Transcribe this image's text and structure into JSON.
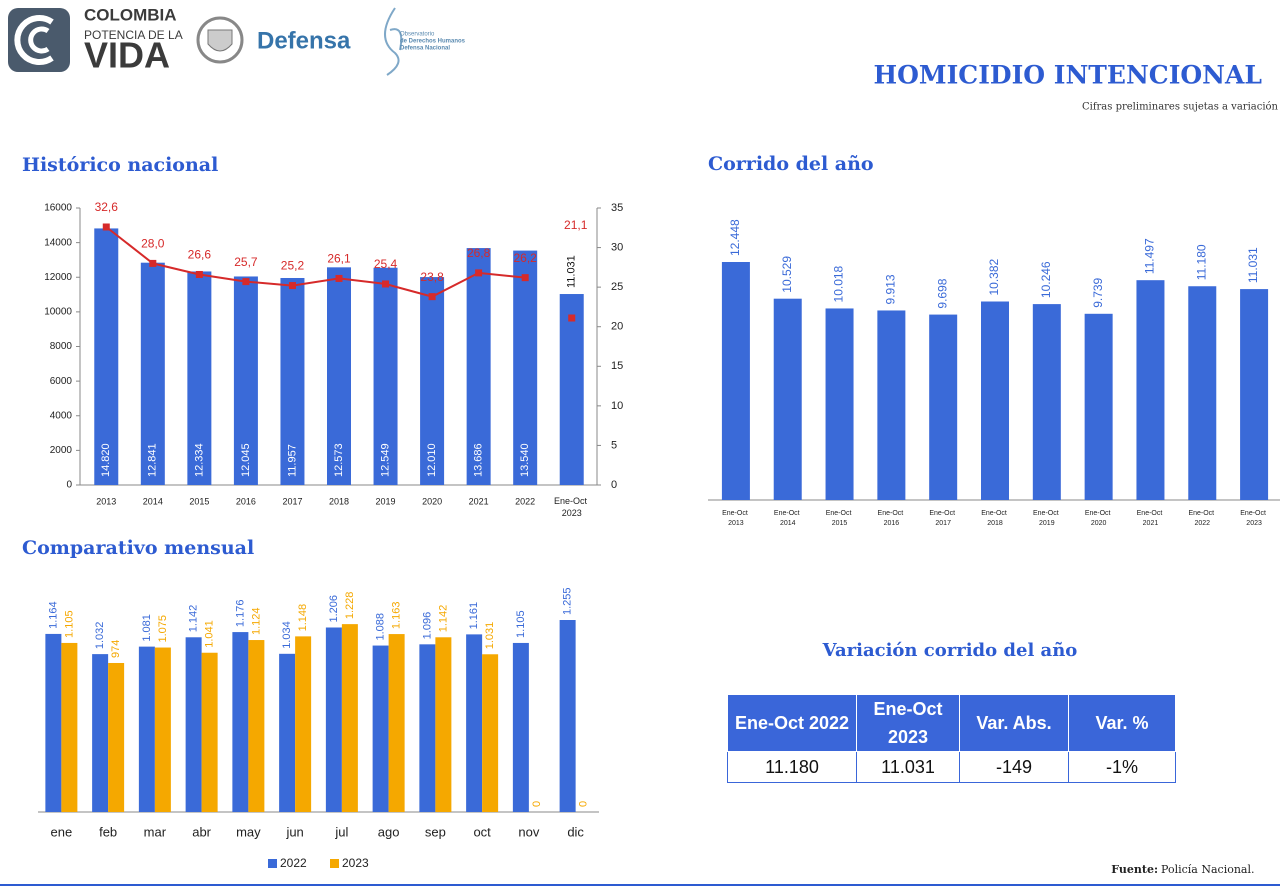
{
  "header": {
    "logo_line1": "COLOMBIA",
    "logo_line2": "POTENCIA DE LA",
    "logo_line3": "VIDA",
    "ministry": "Defensa",
    "observatory": [
      "Observatorio",
      "de Derechos Humanos",
      "Defensa Nacional"
    ],
    "title": "HOMICIDIO INTENCIONAL",
    "subtitle": "Cifras preliminares sujetas a variación"
  },
  "chart_data": [
    {
      "type": "combo",
      "title": "Histórico nacional",
      "categories": [
        "2013",
        "2014",
        "2015",
        "2016",
        "2017",
        "2018",
        "2019",
        "2020",
        "2021",
        "2022",
        "Ene-Oct 2023"
      ],
      "series": [
        {
          "type": "bar",
          "color": "#3a6ad8",
          "values": [
            14820,
            12841,
            12334,
            12045,
            11957,
            12573,
            12549,
            12010,
            13686,
            13540,
            11031
          ],
          "value_labels": [
            "14.820",
            "12.841",
            "12.334",
            "12.045",
            "11.957",
            "12.573",
            "12.549",
            "12.010",
            "13.686",
            "13.540",
            "11.031"
          ]
        },
        {
          "type": "line",
          "axis": "y2",
          "color": "#d62a2a",
          "values": [
            32.6,
            28.0,
            26.6,
            25.7,
            25.2,
            26.1,
            25.4,
            23.8,
            26.8,
            26.2,
            null
          ],
          "value_labels": [
            "32,6",
            "28,0",
            "26,6",
            "25,7",
            "25,2",
            "26,1",
            "25,4",
            "23,8",
            "26,8",
            "26,2",
            null
          ]
        },
        {
          "type": "marker",
          "axis": "y2",
          "color": "#d62a2a",
          "values": [
            null,
            null,
            null,
            null,
            null,
            null,
            null,
            null,
            null,
            null,
            21.1
          ],
          "value_labels": [
            null,
            null,
            null,
            null,
            null,
            null,
            null,
            null,
            null,
            null,
            "21,1"
          ]
        }
      ],
      "ylim": [
        0,
        16000
      ],
      "yticks": [
        0,
        2000,
        4000,
        6000,
        8000,
        10000,
        12000,
        14000,
        16000
      ],
      "y2lim": [
        0,
        35
      ],
      "y2ticks": [
        0,
        5,
        10,
        15,
        20,
        25,
        30,
        35
      ]
    },
    {
      "type": "bar",
      "title": "Corrido del año",
      "categories": [
        "Ene-Oct 2013",
        "Ene-Oct 2014",
        "Ene-Oct 2015",
        "Ene-Oct 2016",
        "Ene-Oct 2017",
        "Ene-Oct 2018",
        "Ene-Oct 2019",
        "Ene-Oct 2020",
        "Ene-Oct 2021",
        "Ene-Oct 2022",
        "Ene-Oct 2023"
      ],
      "values": [
        12448,
        10529,
        10018,
        9913,
        9698,
        10382,
        10246,
        9739,
        11497,
        11180,
        11031
      ],
      "value_labels": [
        "12.448",
        "10.529",
        "10.018",
        "9.913",
        "9.698",
        "10.382",
        "10.246",
        "9.739",
        "11.497",
        "11.180",
        "11.031"
      ],
      "color": "#3a6ad8"
    },
    {
      "type": "grouped_bar",
      "title": "Comparativo mensual",
      "categories": [
        "ene",
        "feb",
        "mar",
        "abr",
        "may",
        "jun",
        "jul",
        "ago",
        "sep",
        "oct",
        "nov",
        "dic"
      ],
      "series": [
        {
          "name": "2022",
          "color": "#3a6ad8",
          "values": [
            1164,
            1032,
            1081,
            1142,
            1176,
            1034,
            1206,
            1088,
            1096,
            1161,
            1105,
            1255
          ],
          "value_labels": [
            "1.164",
            "1.032",
            "1.081",
            "1.142",
            "1.176",
            "1.034",
            "1.206",
            "1.088",
            "1.096",
            "1.161",
            "1.105",
            "1.255"
          ]
        },
        {
          "name": "2023",
          "color": "#f5a800",
          "values": [
            1105,
            974,
            1075,
            1041,
            1124,
            1148,
            1228,
            1163,
            1142,
            1031,
            0,
            0
          ],
          "value_labels": [
            "1.105",
            "974",
            "1.075",
            "1.041",
            "1.124",
            "1.148",
            "1.228",
            "1.163",
            "1.142",
            "1.031",
            "0",
            "0"
          ]
        }
      ],
      "legend": "bottom"
    }
  ],
  "table": {
    "title": "Variación corrido del año",
    "columns": [
      "Ene-Oct 2022",
      "Ene-Oct 2023",
      "Var. Abs.",
      "Var. %"
    ],
    "rows": [
      [
        "11.180",
        "11.031",
        "-149",
        "-1%"
      ]
    ]
  },
  "source": {
    "label": "Fuente:",
    "text": "Policía Nacional."
  }
}
